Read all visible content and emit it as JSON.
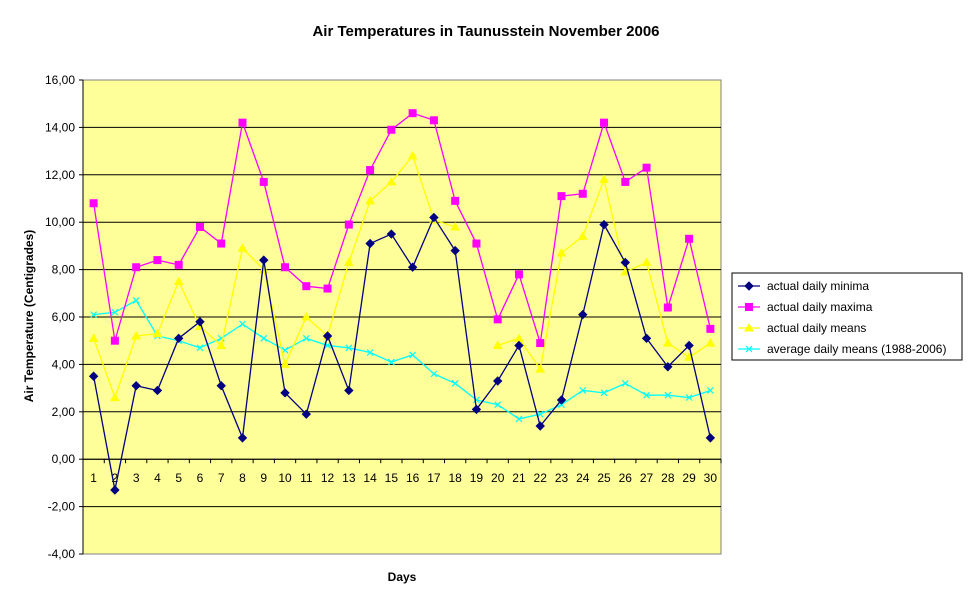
{
  "chart_data": {
    "type": "line",
    "title": "Air Temperatures in Taunusstein  November  2006",
    "xlabel": "Days",
    "ylabel": "Air Temperature (Centigrades)",
    "ylim": [
      -4,
      16
    ],
    "ytick_step": 2,
    "ytick_labels": [
      "-4,00",
      "-2,00",
      "0,00",
      "2,00",
      "4,00",
      "6,00",
      "8,00",
      "10,00",
      "12,00",
      "14,00",
      "16,00"
    ],
    "grid": true,
    "legend_position": "right",
    "plot_background": "#ffff99",
    "categories": [
      "1",
      "2",
      "3",
      "4",
      "5",
      "6",
      "7",
      "8",
      "9",
      "10",
      "11",
      "12",
      "13",
      "14",
      "15",
      "16",
      "17",
      "18",
      "19",
      "20",
      "21",
      "22",
      "23",
      "24",
      "25",
      "26",
      "27",
      "28",
      "29",
      "30"
    ],
    "series": [
      {
        "name": "actual daily minima",
        "color": "#000080",
        "marker": "diamond",
        "values": [
          3.5,
          -1.3,
          3.1,
          2.9,
          5.1,
          5.8,
          3.1,
          0.9,
          8.4,
          2.8,
          1.9,
          5.2,
          2.9,
          9.1,
          9.5,
          8.1,
          10.2,
          8.8,
          2.1,
          3.3,
          4.8,
          1.4,
          2.5,
          6.1,
          9.9,
          8.3,
          5.1,
          3.9,
          4.8,
          0.9
        ]
      },
      {
        "name": "actual daily maxima",
        "color": "#ff00ff",
        "marker": "square",
        "values": [
          10.8,
          5.0,
          8.1,
          8.4,
          8.2,
          9.8,
          9.1,
          14.2,
          11.7,
          8.1,
          7.3,
          7.2,
          9.9,
          12.2,
          13.9,
          14.6,
          14.3,
          10.9,
          9.1,
          5.9,
          7.8,
          4.9,
          11.1,
          11.2,
          14.2,
          11.7,
          12.3,
          6.4,
          9.3,
          5.5
        ]
      },
      {
        "name": "actual daily means",
        "color": "#ffff00",
        "marker": "triangle",
        "values": [
          5.1,
          2.6,
          5.2,
          5.3,
          7.5,
          5.6,
          4.8,
          8.9,
          8.0,
          4.0,
          6.0,
          5.2,
          8.3,
          10.9,
          11.7,
          12.8,
          10.1,
          9.8,
          null,
          4.8,
          5.1,
          3.8,
          8.7,
          9.4,
          11.8,
          7.9,
          8.3,
          4.9,
          4.3,
          4.9
        ]
      },
      {
        "name": "average daily means (1988-2006)",
        "color": "#00ffff",
        "marker": "x",
        "values": [
          6.1,
          6.2,
          6.7,
          5.2,
          5.0,
          4.7,
          5.1,
          5.7,
          5.1,
          4.6,
          5.1,
          4.8,
          4.7,
          4.5,
          4.1,
          4.4,
          3.6,
          3.2,
          2.5,
          2.3,
          1.7,
          1.9,
          2.3,
          2.9,
          2.8,
          3.2,
          2.7,
          2.7,
          2.6,
          2.9
        ]
      }
    ]
  }
}
